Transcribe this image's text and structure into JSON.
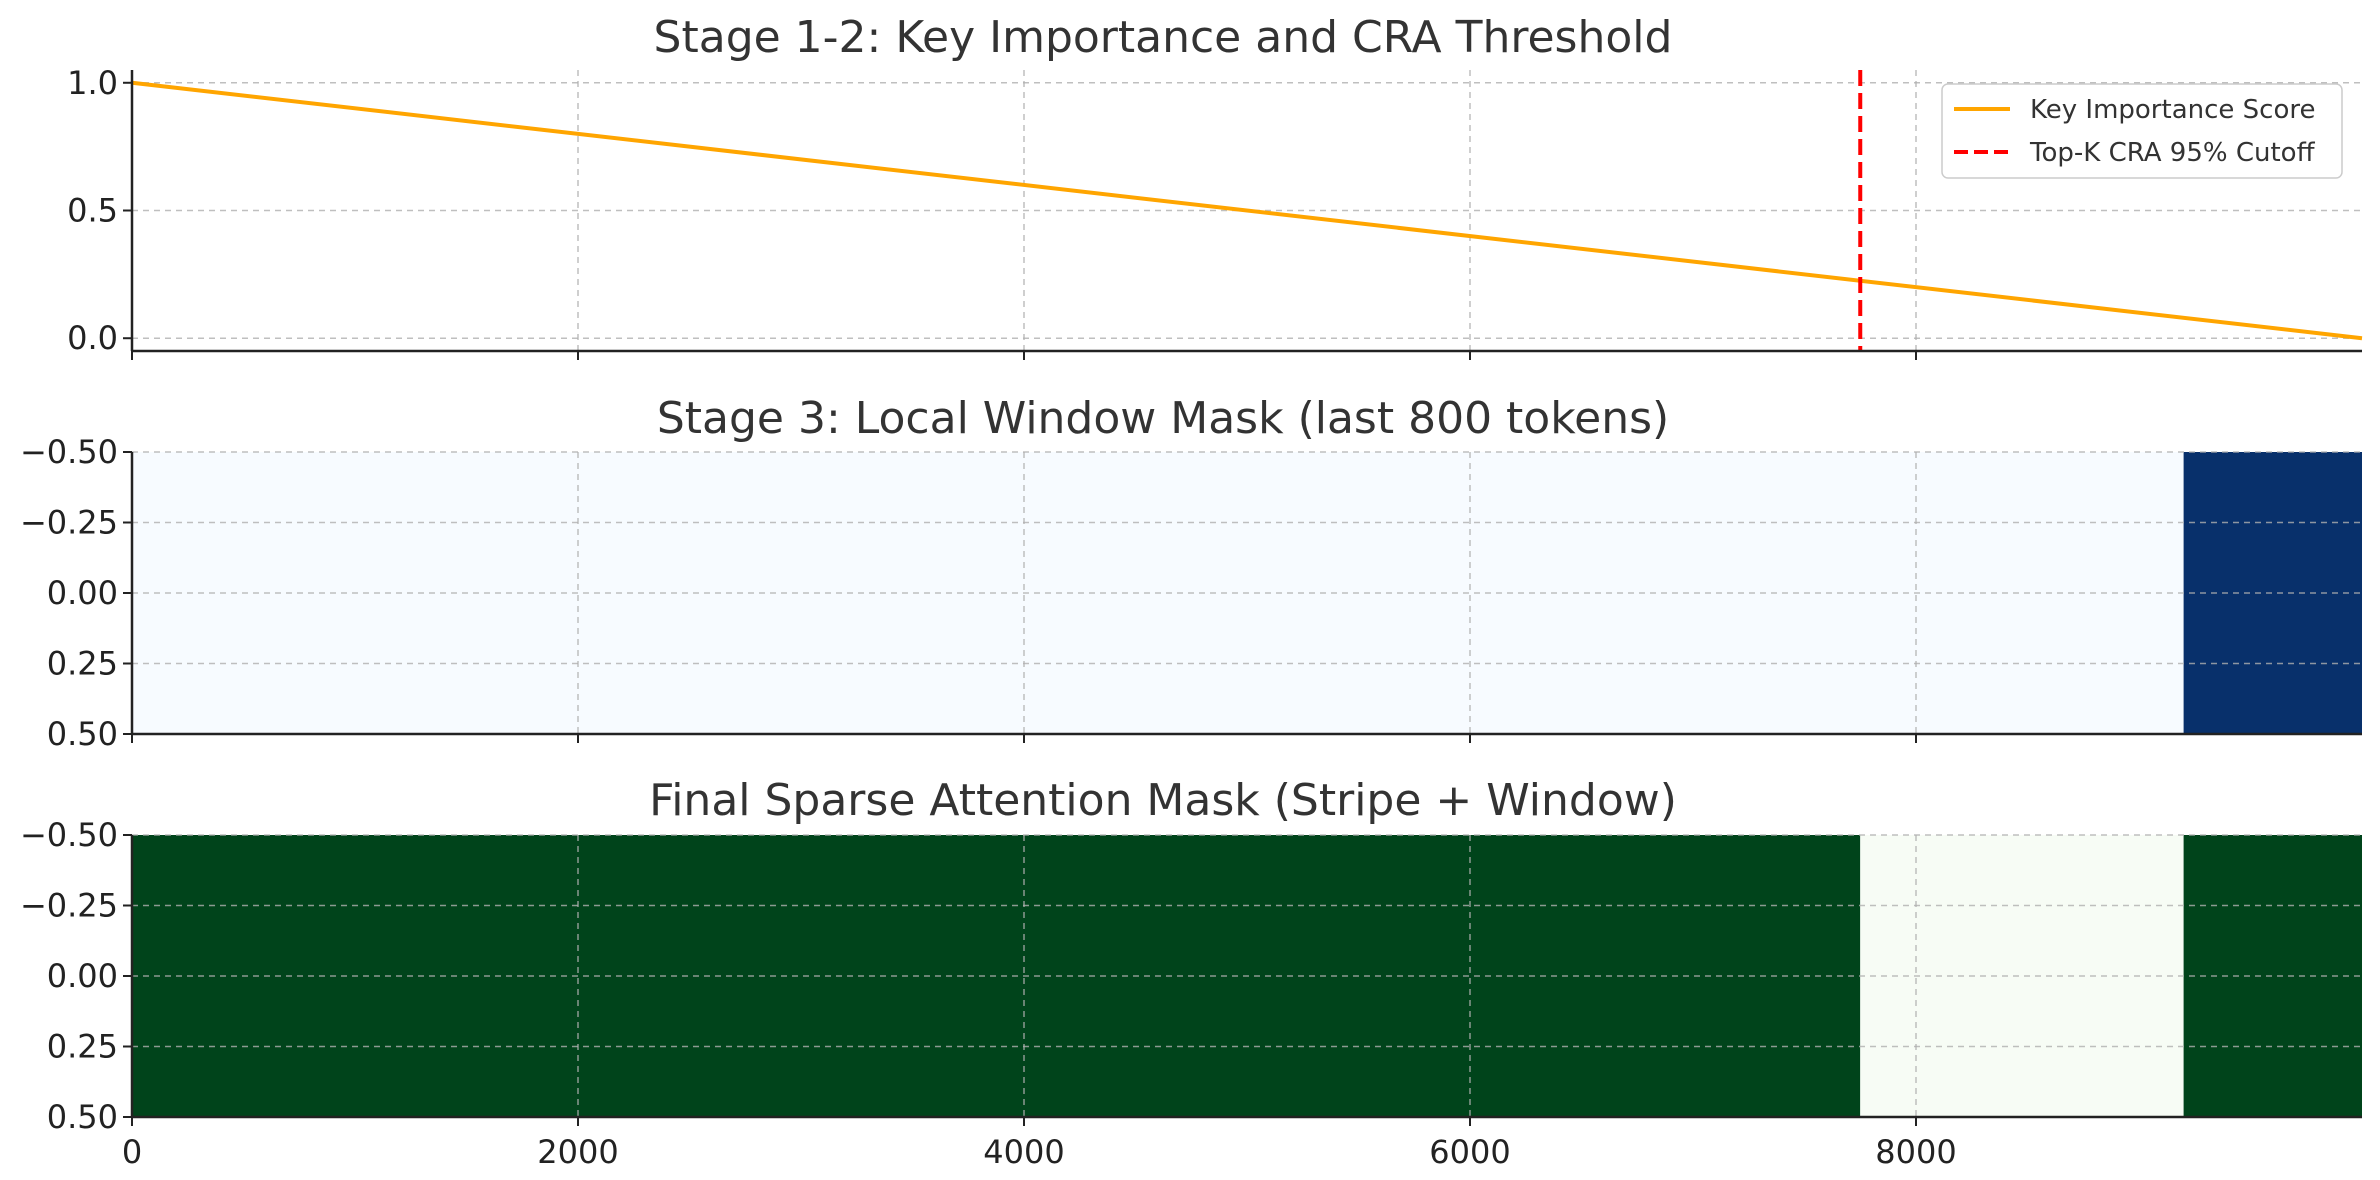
{
  "chart_data": [
    {
      "type": "line",
      "title": "Stage 1-2: Key Importance and CRA Threshold",
      "xlabel": "",
      "ylabel": "",
      "xlim": [
        0,
        10000
      ],
      "ylim": [
        -0.05,
        1.05
      ],
      "x_ticks": [
        0,
        2000,
        4000,
        6000,
        8000
      ],
      "y_ticks": [
        "0.0",
        "0.5",
        "1.0"
      ],
      "y_tick_values": [
        0.0,
        0.5,
        1.0
      ],
      "grid": true,
      "legend_position": "top-right",
      "series": [
        {
          "name": "Key Importance Score",
          "color": "#ffa500",
          "x": [
            0,
            10000
          ],
          "y": [
            1.0,
            0.0
          ]
        }
      ],
      "vlines": [
        {
          "name": "Top-K CRA 95% Cutoff",
          "color": "#ff0000",
          "x": 7750
        }
      ]
    },
    {
      "type": "heatmap",
      "title": "Stage 3: Local Window Mask (last 800 tokens)",
      "xlabel": "",
      "ylabel": "",
      "xlim": [
        0,
        10000
      ],
      "ylim": [
        0.5,
        -0.5
      ],
      "y_ticks": [
        "−0.50",
        "−0.25",
        "0.00",
        "0.25",
        "0.50"
      ],
      "y_tick_values": [
        -0.5,
        -0.25,
        0.0,
        0.25,
        0.5
      ],
      "grid": true,
      "segments": [
        {
          "start": 0,
          "end": 9200,
          "value": 0,
          "color": "#f7fbff"
        },
        {
          "start": 9200,
          "end": 10000,
          "value": 1,
          "color": "#08306b"
        }
      ]
    },
    {
      "type": "heatmap",
      "title": "Final Sparse Attention Mask (Stripe + Window)",
      "xlabel": "",
      "ylabel": "",
      "xlim": [
        0,
        10000
      ],
      "ylim": [
        0.5,
        -0.5
      ],
      "x_ticks": [
        "0",
        "2000",
        "4000",
        "6000",
        "8000"
      ],
      "x_tick_values": [
        0,
        2000,
        4000,
        6000,
        8000
      ],
      "y_ticks": [
        "−0.50",
        "−0.25",
        "0.00",
        "0.25",
        "0.50"
      ],
      "y_tick_values": [
        -0.5,
        -0.25,
        0.0,
        0.25,
        0.5
      ],
      "grid": true,
      "segments": [
        {
          "start": 0,
          "end": 7750,
          "value": 1,
          "color": "#00441b"
        },
        {
          "start": 7750,
          "end": 9200,
          "value": 0,
          "color": "#f7fcf5"
        },
        {
          "start": 9200,
          "end": 10000,
          "value": 1,
          "color": "#00441b"
        }
      ]
    }
  ]
}
